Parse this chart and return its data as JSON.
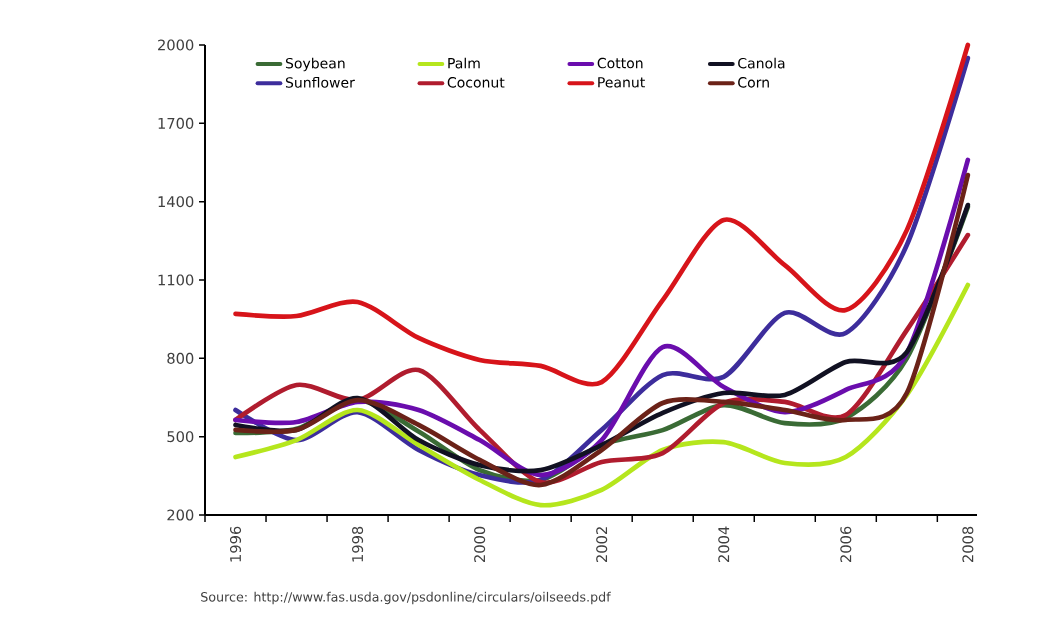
{
  "chart_data": {
    "type": "line",
    "x": [
      1996,
      1997,
      1998,
      1999,
      2000,
      2001,
      2002,
      2003,
      2004,
      2005,
      2006,
      2007,
      2008
    ],
    "series": [
      {
        "name": "Soybean",
        "color": "#3a6b35",
        "values": [
          514,
          530,
          640,
          520,
          372,
          334,
          468,
          525,
          621,
          552,
          572,
          800,
          1380
        ]
      },
      {
        "name": "Sunflower",
        "color": "#3d2d9c",
        "values": [
          602,
          487,
          594,
          449,
          353,
          334,
          526,
          736,
          729,
          974,
          897,
          1234,
          1950
        ]
      },
      {
        "name": "Palm",
        "color": "#b5e61d",
        "values": [
          422,
          487,
          602,
          468,
          334,
          238,
          296,
          449,
          479,
          399,
          422,
          660,
          1081
        ]
      },
      {
        "name": "Coconut",
        "color": "#b01c2e",
        "values": [
          564,
          698,
          640,
          755,
          526,
          326,
          403,
          437,
          629,
          633,
          583,
          908,
          1272
        ]
      },
      {
        "name": "Cotton",
        "color": "#6a0dad",
        "values": [
          564,
          556,
          633,
          602,
          487,
          353,
          487,
          843,
          690,
          594,
          679,
          820,
          1560
        ]
      },
      {
        "name": "Peanut",
        "color": "#d7141a",
        "values": [
          970,
          962,
          1016,
          878,
          794,
          771,
          709,
          1023,
          1330,
          1157,
          985,
          1291,
          2000
        ]
      },
      {
        "name": "Canola",
        "color": "#111122",
        "values": [
          545,
          526,
          648,
          487,
          391,
          372,
          468,
          591,
          667,
          660,
          786,
          824,
          1387
        ]
      },
      {
        "name": "Corn",
        "color": "#6b2218",
        "values": [
          526,
          526,
          640,
          545,
          411,
          315,
          449,
          629,
          633,
          602,
          564,
          667,
          1502
        ]
      }
    ],
    "xlim": [
      1995.5,
      2008.15
    ],
    "xticks": [
      1996,
      1998,
      2000,
      2002,
      2004,
      2006,
      2008,
      {
        "value": 1995.5,
        "label": null
      },
      {
        "value": 1996.5,
        "label": null
      },
      {
        "value": 1997.5,
        "label": null
      },
      {
        "value": 1998.5,
        "label": null
      },
      {
        "value": 1999.5,
        "label": null
      },
      {
        "value": 2000.5,
        "label": null
      },
      {
        "value": 2001.5,
        "label": null
      },
      {
        "value": 2002.5,
        "label": null
      },
      {
        "value": 2003.5,
        "label": null
      },
      {
        "value": 2004.5,
        "label": null
      },
      {
        "value": 2005.5,
        "label": null
      },
      {
        "value": 2006.5,
        "label": null
      },
      {
        "value": 2007.5,
        "label": null
      }
    ],
    "ylim": [
      200,
      2000
    ],
    "yticks": [
      200,
      500,
      800,
      1100,
      1400,
      1700,
      2000
    ],
    "legend": "top left",
    "annotations": [
      "Source: http://www.fas.usda.gov/psdonline/circulars/oilseeds.pdf"
    ]
  }
}
